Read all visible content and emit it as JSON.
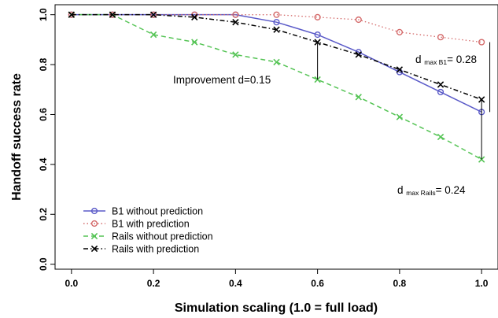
{
  "chart_data": {
    "type": "line",
    "xlabel": "Simulation scaling (1.0 = full load)",
    "ylabel": "Handoff success rate",
    "xlim": [
      -0.04,
      1.04
    ],
    "ylim": [
      -0.02,
      1.04
    ],
    "x_ticks": [
      "0.0",
      "0.2",
      "0.4",
      "0.6",
      "0.8",
      "1.0"
    ],
    "y_ticks": [
      "0.0",
      "0.2",
      "0.4",
      "0.6",
      "0.8",
      "1.0"
    ],
    "grid": false,
    "legend_position": "bottom-left",
    "x": [
      0.0,
      0.1,
      0.2,
      0.3,
      0.4,
      0.5,
      0.6,
      0.7,
      0.8,
      0.9,
      1.0
    ],
    "series": [
      {
        "name": "B1 without prediction",
        "color": "#5a5ac8",
        "line": "solid",
        "marker": "circle",
        "values": [
          1.0,
          1.0,
          1.0,
          1.0,
          1.0,
          0.97,
          0.92,
          0.85,
          0.77,
          0.69,
          0.61
        ]
      },
      {
        "name": "B1 with prediction",
        "color": "#d46a6a",
        "line": "dotted",
        "marker": "circle",
        "values": [
          1.0,
          1.0,
          1.0,
          1.0,
          1.0,
          1.0,
          0.99,
          0.98,
          0.93,
          0.91,
          0.89
        ]
      },
      {
        "name": "Rails without prediction",
        "color": "#55c455",
        "line": "dashed",
        "marker": "x",
        "values": [
          1.0,
          1.0,
          0.92,
          0.89,
          0.84,
          0.81,
          0.74,
          0.67,
          0.59,
          0.51,
          0.42
        ]
      },
      {
        "name": "Rails with prediction",
        "color": "#000000",
        "line": "dashdot",
        "marker": "x",
        "values": [
          1.0,
          1.0,
          1.0,
          0.99,
          0.97,
          0.94,
          0.89,
          0.84,
          0.78,
          0.72,
          0.66
        ]
      }
    ],
    "annotations": {
      "improvement": {
        "label": "Improvement d=0.15",
        "x": 0.6,
        "y_from": 0.74,
        "y_to": 0.89
      },
      "dmax_b1": {
        "main": "d",
        "sub": "max B1",
        "rest": "= 0.28",
        "x": 1.02,
        "y_from": 0.61,
        "y_to": 0.89
      },
      "dmax_rails": {
        "main": "d",
        "sub": "max Rails",
        "rest": "= 0.24",
        "x": 1.0,
        "y_from": 0.42,
        "y_to": 0.66
      }
    }
  }
}
